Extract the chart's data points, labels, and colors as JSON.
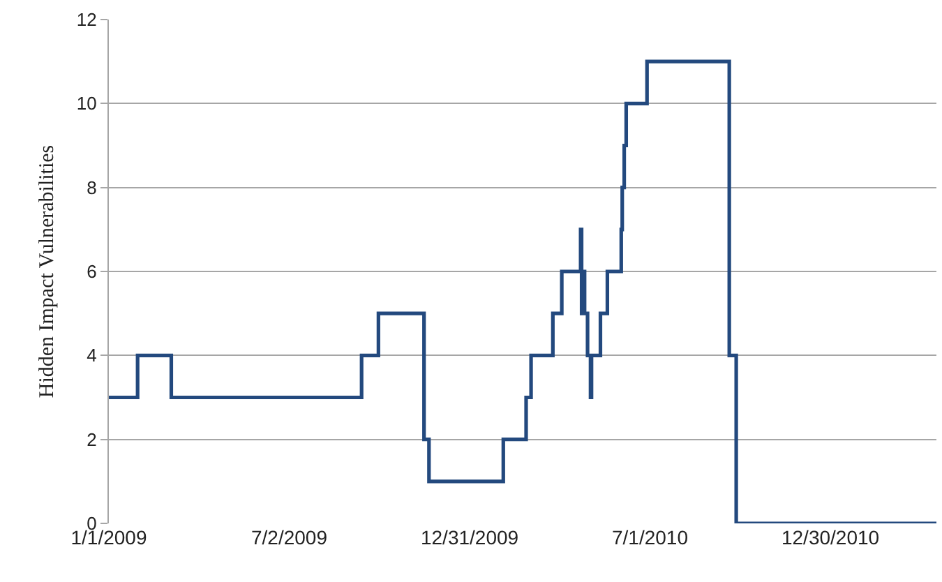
{
  "chart_data": {
    "type": "step",
    "ylabel": "Hidden Impact Vulnerabilities",
    "x": [
      "2009-01-01",
      "2009-01-30",
      "2009-03-05",
      "2009-09-13",
      "2009-09-30",
      "2009-11-15",
      "2009-11-20",
      "2010-02-03",
      "2010-02-26",
      "2010-03-03",
      "2010-03-25",
      "2010-04-03",
      "2010-04-22",
      "2010-04-23",
      "2010-04-25",
      "2010-04-26",
      "2010-04-29",
      "2010-05-02",
      "2010-05-03",
      "2010-05-12",
      "2010-05-19",
      "2010-06-02",
      "2010-06-03",
      "2010-06-05",
      "2010-06-07",
      "2010-06-28",
      "2010-09-19",
      "2010-09-26",
      "2011-04-16"
    ],
    "series": [
      {
        "color": "#23497e",
        "values": [
          3,
          4,
          3,
          4,
          5,
          2,
          1,
          2,
          3,
          4,
          5,
          6,
          7,
          5,
          6,
          5,
          4,
          3,
          4,
          5,
          6,
          7,
          8,
          9,
          10,
          11,
          4,
          0,
          0
        ]
      }
    ],
    "xlim": [
      "2009-01-01",
      "2011-04-16"
    ],
    "xticks": [
      {
        "value": "2009-01-01",
        "label": "1/1/2009"
      },
      {
        "value": "2009-07-02",
        "label": "7/2/2009"
      },
      {
        "value": "2009-12-31",
        "label": "12/31/2009"
      },
      {
        "value": "2010-07-01",
        "label": "7/1/2010"
      },
      {
        "value": "2010-12-30",
        "label": "12/30/2010"
      }
    ],
    "ylim": [
      0,
      12
    ],
    "yticks": [
      0,
      2,
      4,
      6,
      8,
      10,
      12
    ],
    "grid": "y",
    "line_style": "solid",
    "marker": "none"
  }
}
